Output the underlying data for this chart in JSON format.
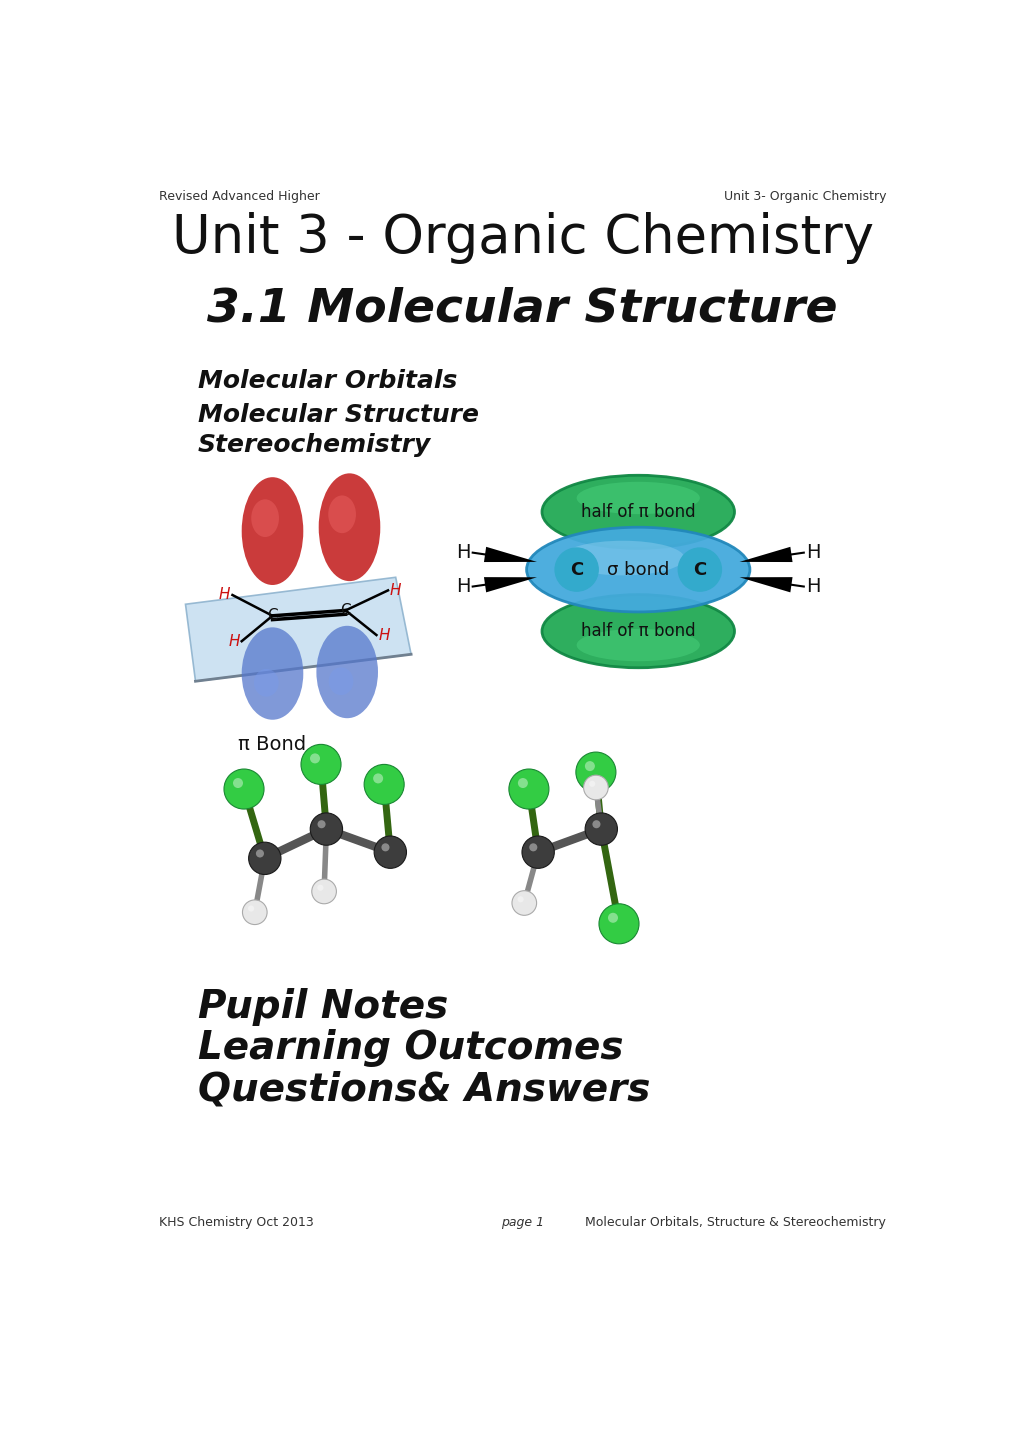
{
  "title": "Unit 3 - Organic Chemistry",
  "header_left": "Revised Advanced Higher",
  "header_right": "Unit 3- Organic Chemistry",
  "section_title": "3.1 Molecular Structure",
  "bullet1": "Molecular Orbitals",
  "bullet2": "Molecular Structure",
  "bullet3": "Stereochemistry",
  "bottom_left": "KHS Chemistry Oct 2013",
  "bottom_center": "page 1",
  "bottom_right": "Molecular Orbitals, Structure & Stereochemistry",
  "pupil_notes": "Pupil Notes",
  "learning_outcomes": "Learning Outcomes",
  "questions_answers": "Questions& Answers",
  "pi_bond_label": "π Bond",
  "sigma_bond_label": "σ bond",
  "half_pi_top": "half of π bond",
  "half_pi_bot": "half of π bond",
  "background_color": "#ffffff",
  "text_color": "#111111"
}
